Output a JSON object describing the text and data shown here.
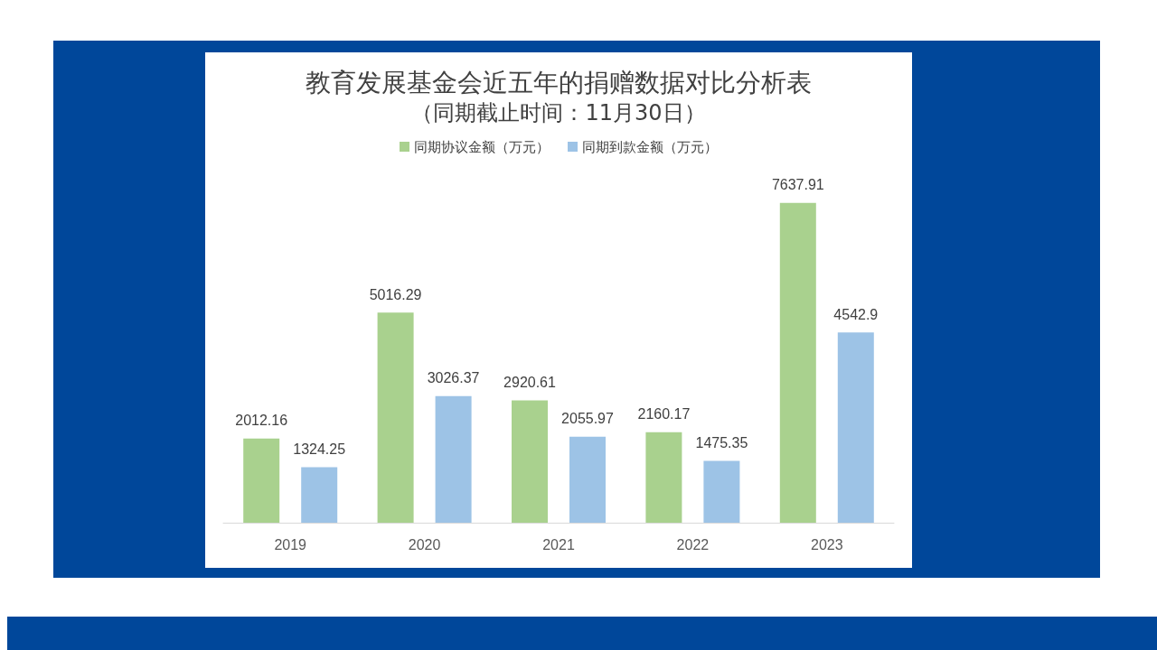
{
  "chart_data": {
    "type": "bar",
    "title": "教育发展基金会近五年的捐赠数据对比分析表",
    "subtitle": "（同期截止时间：11月30日）",
    "categories": [
      "2019",
      "2020",
      "2021",
      "2022",
      "2023"
    ],
    "series": [
      {
        "name": "同期协议金额（万元）",
        "color": "#a9d18e",
        "values": [
          2012.16,
          5016.29,
          2920.61,
          2160.17,
          7637.91
        ]
      },
      {
        "name": "同期到款金额（万元）",
        "color": "#9dc3e6",
        "values": [
          1324.25,
          3026.37,
          2055.97,
          1475.35,
          4542.9
        ]
      }
    ],
    "data_labels": true,
    "legend": "top",
    "tick_labels": "x"
  }
}
